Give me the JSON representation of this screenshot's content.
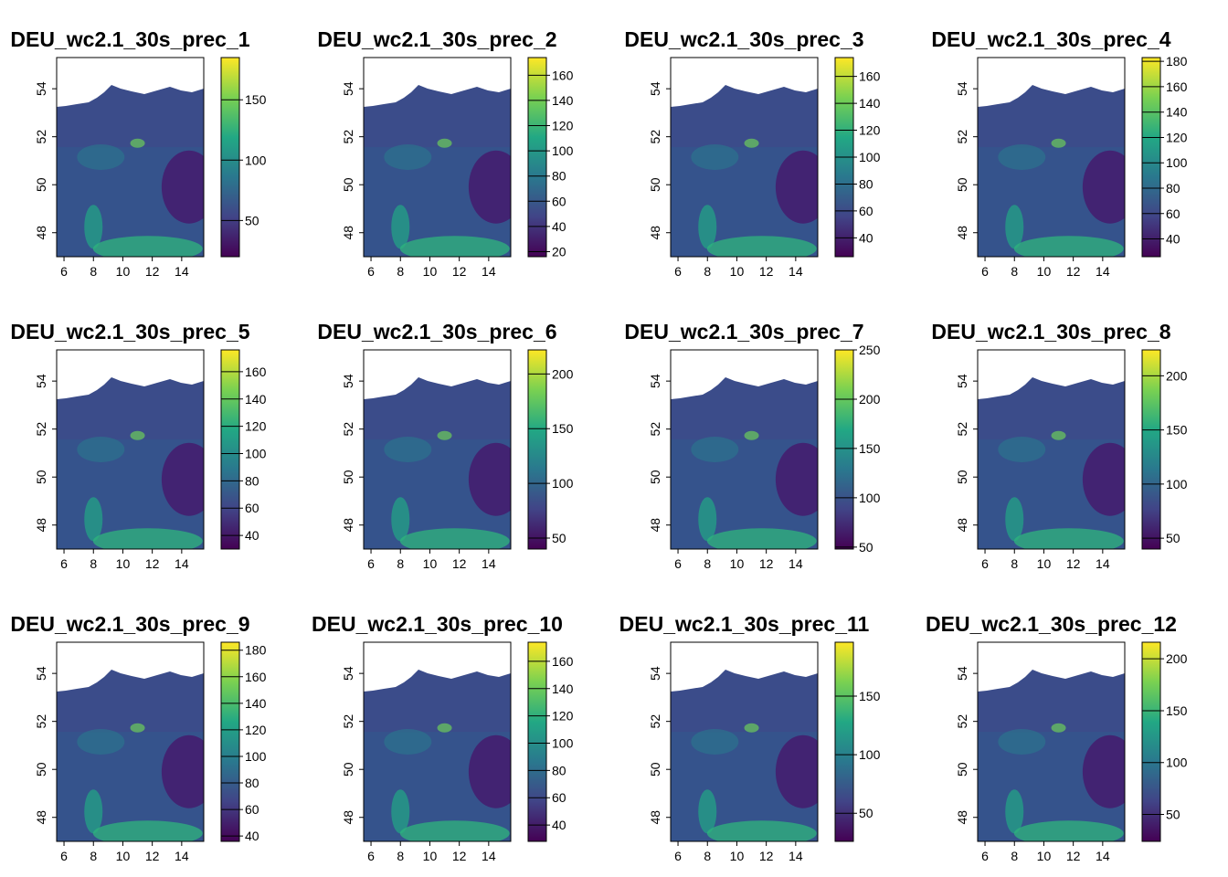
{
  "chart_data": [
    {
      "type": "heatmap",
      "title": "DEU_wc2.1_30s_prec_1",
      "x_ticks": [
        "6",
        "8",
        "10",
        "12",
        "14"
      ],
      "y_ticks": [
        "48",
        "50",
        "52",
        "54"
      ],
      "xlim": [
        5.5,
        15.5
      ],
      "ylim": [
        47,
        55.3
      ],
      "legend_range": [
        20,
        185
      ],
      "legend_ticks": [
        "50",
        "100",
        "150"
      ],
      "legend_tick_values": [
        50,
        100,
        150
      ],
      "colormap": [
        "#440154",
        "#414487",
        "#2a788e",
        "#22a884",
        "#7ad151",
        "#fde725"
      ]
    },
    {
      "type": "heatmap",
      "title": "DEU_wc2.1_30s_prec_2",
      "x_ticks": [
        "6",
        "8",
        "10",
        "12",
        "14"
      ],
      "y_ticks": [
        "48",
        "50",
        "52",
        "54"
      ],
      "xlim": [
        5.5,
        15.5
      ],
      "ylim": [
        47,
        55.3
      ],
      "legend_range": [
        16,
        174
      ],
      "legend_ticks": [
        "20",
        "40",
        "60",
        "80",
        "100",
        "120",
        "140",
        "160"
      ],
      "legend_tick_values": [
        20,
        40,
        60,
        80,
        100,
        120,
        140,
        160
      ],
      "colormap": [
        "#440154",
        "#414487",
        "#2a788e",
        "#22a884",
        "#7ad151",
        "#fde725"
      ]
    },
    {
      "type": "heatmap",
      "title": "DEU_wc2.1_30s_prec_3",
      "x_ticks": [
        "6",
        "8",
        "10",
        "12",
        "14"
      ],
      "y_ticks": [
        "48",
        "50",
        "52",
        "54"
      ],
      "xlim": [
        5.5,
        15.5
      ],
      "ylim": [
        47,
        55.3
      ],
      "legend_range": [
        26,
        174
      ],
      "legend_ticks": [
        "40",
        "60",
        "80",
        "100",
        "120",
        "140",
        "160"
      ],
      "legend_tick_values": [
        40,
        60,
        80,
        100,
        120,
        140,
        160
      ],
      "colormap": [
        "#440154",
        "#414487",
        "#2a788e",
        "#22a884",
        "#7ad151",
        "#fde725"
      ]
    },
    {
      "type": "heatmap",
      "title": "DEU_wc2.1_30s_prec_4",
      "x_ticks": [
        "6",
        "8",
        "10",
        "12",
        "14"
      ],
      "y_ticks": [
        "48",
        "50",
        "52",
        "54"
      ],
      "xlim": [
        5.5,
        15.5
      ],
      "ylim": [
        47,
        55.3
      ],
      "legend_range": [
        26,
        183
      ],
      "legend_ticks": [
        "40",
        "60",
        "80",
        "100",
        "120",
        "140",
        "160",
        "180"
      ],
      "legend_tick_values": [
        40,
        60,
        80,
        100,
        120,
        140,
        160,
        180
      ],
      "colormap": [
        "#440154",
        "#414487",
        "#2a788e",
        "#22a884",
        "#7ad151",
        "#fde725"
      ]
    },
    {
      "type": "heatmap",
      "title": "DEU_wc2.1_30s_prec_5",
      "x_ticks": [
        "6",
        "8",
        "10",
        "12",
        "14"
      ],
      "y_ticks": [
        "48",
        "50",
        "52",
        "54"
      ],
      "xlim": [
        5.5,
        15.5
      ],
      "ylim": [
        47,
        55.3
      ],
      "legend_range": [
        30,
        176
      ],
      "legend_ticks": [
        "40",
        "60",
        "80",
        "100",
        "120",
        "140",
        "160"
      ],
      "legend_tick_values": [
        40,
        60,
        80,
        100,
        120,
        140,
        160
      ],
      "colormap": [
        "#440154",
        "#414487",
        "#2a788e",
        "#22a884",
        "#7ad151",
        "#fde725"
      ]
    },
    {
      "type": "heatmap",
      "title": "DEU_wc2.1_30s_prec_6",
      "x_ticks": [
        "6",
        "8",
        "10",
        "12",
        "14"
      ],
      "y_ticks": [
        "48",
        "50",
        "52",
        "54"
      ],
      "xlim": [
        5.5,
        15.5
      ],
      "ylim": [
        47,
        55.3
      ],
      "legend_range": [
        40,
        222
      ],
      "legend_ticks": [
        "50",
        "100",
        "150",
        "200"
      ],
      "legend_tick_values": [
        50,
        100,
        150,
        200
      ],
      "colormap": [
        "#440154",
        "#414487",
        "#2a788e",
        "#22a884",
        "#7ad151",
        "#fde725"
      ]
    },
    {
      "type": "heatmap",
      "title": "DEU_wc2.1_30s_prec_7",
      "x_ticks": [
        "6",
        "8",
        "10",
        "12",
        "14"
      ],
      "y_ticks": [
        "48",
        "50",
        "52",
        "54"
      ],
      "xlim": [
        5.5,
        15.5
      ],
      "ylim": [
        47,
        55.3
      ],
      "legend_range": [
        48,
        250
      ],
      "legend_ticks": [
        "50",
        "100",
        "150",
        "200",
        "250"
      ],
      "legend_tick_values": [
        50,
        100,
        150,
        200,
        250
      ],
      "colormap": [
        "#440154",
        "#414487",
        "#2a788e",
        "#22a884",
        "#7ad151",
        "#fde725"
      ]
    },
    {
      "type": "heatmap",
      "title": "DEU_wc2.1_30s_prec_8",
      "x_ticks": [
        "6",
        "8",
        "10",
        "12",
        "14"
      ],
      "y_ticks": [
        "48",
        "50",
        "52",
        "54"
      ],
      "xlim": [
        5.5,
        15.5
      ],
      "ylim": [
        47,
        55.3
      ],
      "legend_range": [
        40,
        224
      ],
      "legend_ticks": [
        "50",
        "100",
        "150",
        "200"
      ],
      "legend_tick_values": [
        50,
        100,
        150,
        200
      ],
      "colormap": [
        "#440154",
        "#414487",
        "#2a788e",
        "#22a884",
        "#7ad151",
        "#fde725"
      ]
    },
    {
      "type": "heatmap",
      "title": "DEU_wc2.1_30s_prec_9",
      "x_ticks": [
        "6",
        "8",
        "10",
        "12",
        "14"
      ],
      "y_ticks": [
        "48",
        "50",
        "52",
        "54"
      ],
      "xlim": [
        5.5,
        15.5
      ],
      "ylim": [
        47,
        55.3
      ],
      "legend_range": [
        36,
        186
      ],
      "legend_ticks": [
        "40",
        "60",
        "80",
        "100",
        "120",
        "140",
        "160",
        "180"
      ],
      "legend_tick_values": [
        40,
        60,
        80,
        100,
        120,
        140,
        160,
        180
      ],
      "colormap": [
        "#440154",
        "#414487",
        "#2a788e",
        "#22a884",
        "#7ad151",
        "#fde725"
      ]
    },
    {
      "type": "heatmap",
      "title": "DEU_wc2.1_30s_prec_10",
      "x_ticks": [
        "6",
        "8",
        "10",
        "12",
        "14"
      ],
      "y_ticks": [
        "48",
        "50",
        "52",
        "54"
      ],
      "xlim": [
        5.5,
        15.5
      ],
      "ylim": [
        47,
        55.3
      ],
      "legend_range": [
        28,
        174
      ],
      "legend_ticks": [
        "40",
        "60",
        "80",
        "100",
        "120",
        "140",
        "160"
      ],
      "legend_tick_values": [
        40,
        60,
        80,
        100,
        120,
        140,
        160
      ],
      "colormap": [
        "#440154",
        "#414487",
        "#2a788e",
        "#22a884",
        "#7ad151",
        "#fde725"
      ]
    },
    {
      "type": "heatmap",
      "title": "DEU_wc2.1_30s_prec_11",
      "x_ticks": [
        "6",
        "8",
        "10",
        "12",
        "14"
      ],
      "y_ticks": [
        "48",
        "50",
        "52",
        "54"
      ],
      "xlim": [
        5.5,
        15.5
      ],
      "ylim": [
        47,
        55.3
      ],
      "legend_range": [
        26,
        196
      ],
      "legend_ticks": [
        "50",
        "100",
        "150"
      ],
      "legend_tick_values": [
        50,
        100,
        150
      ],
      "colormap": [
        "#440154",
        "#414487",
        "#2a788e",
        "#22a884",
        "#7ad151",
        "#fde725"
      ]
    },
    {
      "type": "heatmap",
      "title": "DEU_wc2.1_30s_prec_12",
      "x_ticks": [
        "6",
        "8",
        "10",
        "12",
        "14"
      ],
      "y_ticks": [
        "48",
        "50",
        "52",
        "54"
      ],
      "xlim": [
        5.5,
        15.5
      ],
      "ylim": [
        47,
        55.3
      ],
      "legend_range": [
        24,
        216
      ],
      "legend_ticks": [
        "50",
        "100",
        "150",
        "200"
      ],
      "legend_tick_values": [
        50,
        100,
        150,
        200
      ],
      "colormap": [
        "#440154",
        "#414487",
        "#2a788e",
        "#22a884",
        "#7ad151",
        "#fde725"
      ]
    }
  ]
}
